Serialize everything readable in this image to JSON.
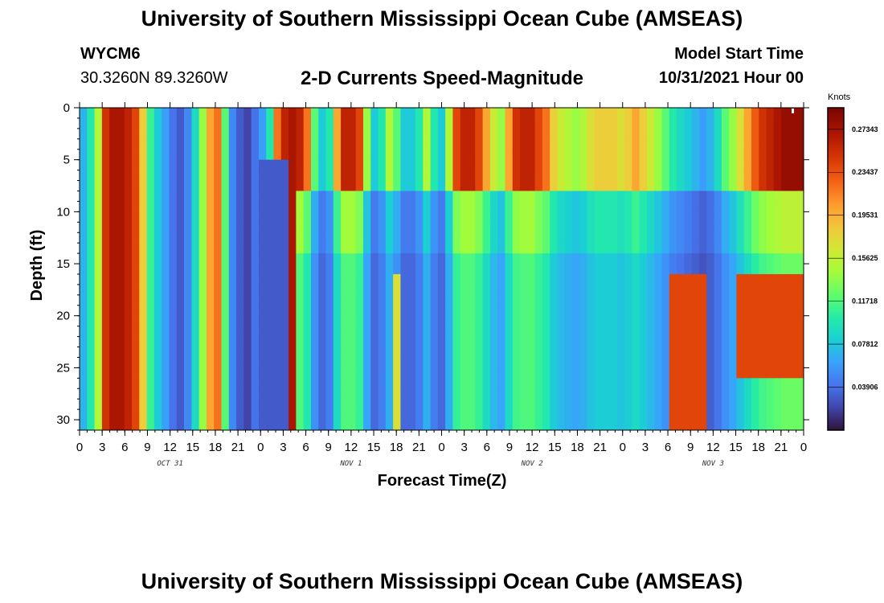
{
  "header": {
    "title": "University of Southern Mississippi Ocean Cube (AMSEAS)",
    "station_id": "WYCM6",
    "station_coords": "30.3260N  89.3260W",
    "chart_title": "2-D Currents Speed-Magnitude",
    "model_start_label": "Model Start Time",
    "model_start_value": "10/31/2021 Hour 00"
  },
  "footer": {
    "title": "University of Southern Mississippi Ocean Cube (AMSEAS)"
  },
  "colors": {
    "background": "#ffffff",
    "axis": "#000000"
  },
  "chart_data": {
    "type": "heatmap",
    "title": "2-D Currents Speed-Magnitude",
    "xlabel": "Forecast Time(Z)",
    "ylabel": "Depth (ft)",
    "x_range": [
      0,
      96
    ],
    "x_unit": "hours since 10/31/2021 00Z",
    "y_range": [
      0,
      31
    ],
    "y_inverted": true,
    "x_tick_labels": [
      "0",
      "3",
      "6",
      "9",
      "12",
      "15",
      "18",
      "21",
      "0",
      "3",
      "6",
      "9",
      "12",
      "15",
      "18",
      "21",
      "0",
      "3",
      "6",
      "9",
      "12",
      "15",
      "18",
      "21",
      "0",
      "3",
      "6",
      "9",
      "12",
      "15",
      "18",
      "21",
      "0"
    ],
    "x_tick_hours": [
      0,
      3,
      6,
      9,
      12,
      15,
      18,
      21,
      24,
      27,
      30,
      33,
      36,
      39,
      42,
      45,
      48,
      51,
      54,
      57,
      60,
      63,
      66,
      69,
      72,
      75,
      78,
      81,
      84,
      87,
      90,
      93,
      96
    ],
    "day_labels": [
      {
        "label": "OCT 31",
        "hour": 12
      },
      {
        "label": "NOV 1",
        "hour": 36
      },
      {
        "label": "NOV 2",
        "hour": 60
      },
      {
        "label": "NOV 3",
        "hour": 84
      }
    ],
    "y_tick_labels": [
      "0",
      "5",
      "10",
      "15",
      "20",
      "25",
      "30"
    ],
    "y_tick_values": [
      0,
      5,
      10,
      15,
      20,
      25,
      30
    ],
    "colorbar": {
      "unit": "Knots",
      "range": [
        0,
        0.293
      ],
      "labels": [
        "0.27343",
        "0.23437",
        "0.19531",
        "0.15625",
        "0.11718",
        "0.07812",
        "0.03906"
      ],
      "values": [
        0.27343,
        0.23437,
        0.19531,
        0.15625,
        0.11718,
        0.07812,
        0.03906
      ]
    },
    "value_unit": "knots",
    "surface_profile_knots": [
      0.07,
      0.1,
      0.15,
      0.25,
      0.27,
      0.27,
      0.26,
      0.24,
      0.18,
      0.11,
      0.08,
      0.06,
      0.04,
      0.03,
      0.05,
      0.09,
      0.14,
      0.2,
      0.22,
      0.12,
      0.05,
      0.03,
      0.02,
      0.04,
      0.06,
      0.1,
      0.22,
      0.26,
      0.27,
      0.26,
      0.22,
      0.12,
      0.08,
      0.1,
      0.2,
      0.26,
      0.26,
      0.24,
      0.14,
      0.08,
      0.1,
      0.15,
      0.12,
      0.08,
      0.08,
      0.1,
      0.15,
      0.1,
      0.08,
      0.15,
      0.24,
      0.26,
      0.26,
      0.24,
      0.2,
      0.16,
      0.14,
      0.2,
      0.25,
      0.26,
      0.26,
      0.24,
      0.22,
      0.18,
      0.16,
      0.15,
      0.14,
      0.15,
      0.17,
      0.18,
      0.18,
      0.18,
      0.17,
      0.18,
      0.2,
      0.18,
      0.16,
      0.14,
      0.12,
      0.1,
      0.09,
      0.08,
      0.07,
      0.06,
      0.07,
      0.09,
      0.12,
      0.14,
      0.17,
      0.2,
      0.23,
      0.25,
      0.26,
      0.27,
      0.28,
      0.28,
      0.28
    ]
  }
}
